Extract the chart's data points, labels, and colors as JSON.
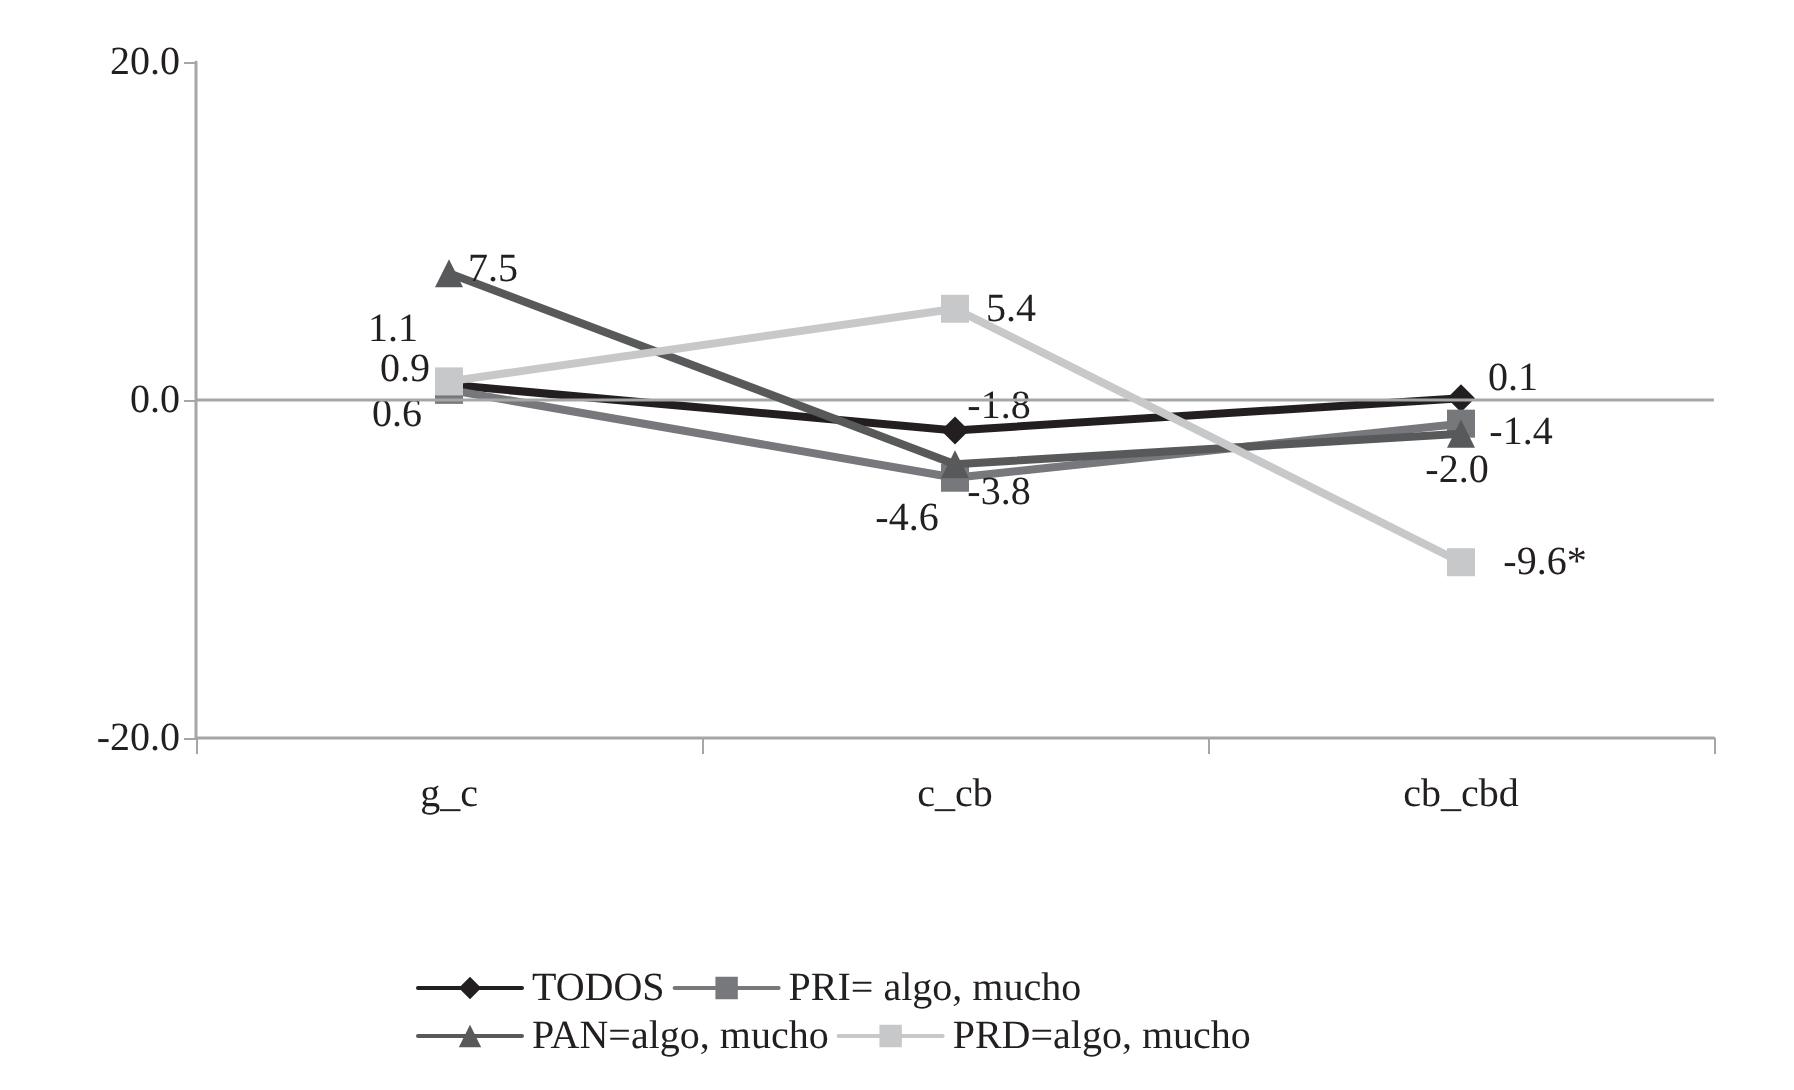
{
  "chart_data": {
    "type": "line",
    "categories": [
      "g_c",
      "c_cb",
      "cb_cbd"
    ],
    "ylim": [
      -20,
      20
    ],
    "yticks": [
      {
        "value": -20,
        "label": "-20.0"
      },
      {
        "value": 0,
        "label": "0.0"
      },
      {
        "value": 20,
        "label": "20.0"
      }
    ],
    "grid": false,
    "legend": "bottom",
    "ref_lines": [
      {
        "axis": "y",
        "value": 0,
        "color": "#a6a6a6"
      }
    ],
    "series": [
      {
        "name": "TODOS",
        "color": "#231f20",
        "marker": "diamond",
        "values": [
          0.9,
          -1.8,
          0.1
        ],
        "value_labels": [
          "0.9",
          "-1.8",
          "0.1"
        ]
      },
      {
        "name": "PRI= algo, mucho",
        "color": "#77787b",
        "marker": "square",
        "values": [
          0.6,
          -4.6,
          -1.4
        ],
        "value_labels": [
          "0.6",
          "-4.6",
          "-1.4"
        ]
      },
      {
        "name": "PAN=algo, mucho",
        "color": "#58595b",
        "marker": "triangle",
        "values": [
          7.5,
          -3.8,
          -2.0
        ],
        "value_labels": [
          "7.5",
          "-3.8",
          "-2.0"
        ]
      },
      {
        "name": "PRD=algo, mucho",
        "color": "#c7c8ca",
        "marker": "square",
        "values": [
          1.1,
          5.4,
          -9.6
        ],
        "value_labels": [
          "1.1",
          "5.4",
          "-9.6*"
        ]
      }
    ]
  }
}
